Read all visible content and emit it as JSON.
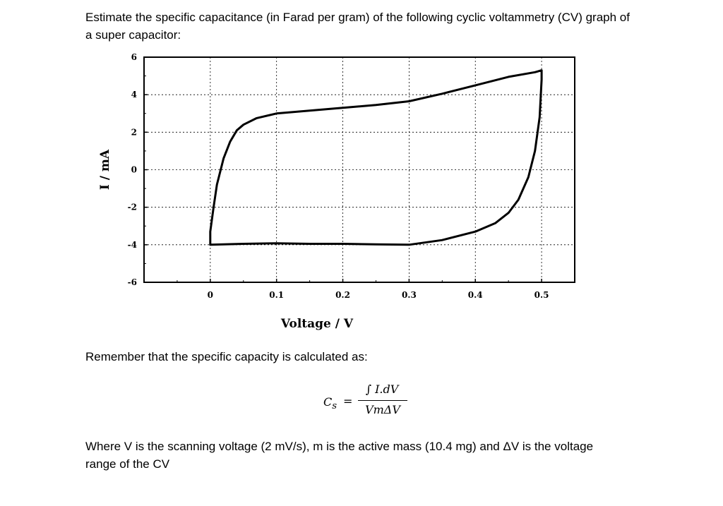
{
  "question": {
    "text": "Estimate the specific capacitance (in Farad per gram) of the following cyclic voltammetry (CV) graph of a super capacitor:"
  },
  "chart_data": {
    "type": "line",
    "title": "",
    "xlabel": "Voltage / V",
    "ylabel": "I / mA",
    "xlim": [
      -0.1,
      0.55
    ],
    "ylim": [
      -6,
      6
    ],
    "x_ticks": [
      "0",
      "0.1",
      "0.2",
      "0.3",
      "0.4",
      "0.5"
    ],
    "y_ticks": [
      "6",
      "4",
      "2",
      "0",
      "-2",
      "-4",
      "-6"
    ],
    "grid": true,
    "series": [
      {
        "x": [
          0.0,
          0.0,
          0.005,
          0.01,
          0.02,
          0.03,
          0.04,
          0.05,
          0.07,
          0.1,
          0.15,
          0.2,
          0.25,
          0.3,
          0.35,
          0.4,
          0.45,
          0.49,
          0.5,
          0.5,
          0.497,
          0.49,
          0.48,
          0.465,
          0.45,
          0.43,
          0.4,
          0.35,
          0.3,
          0.25,
          0.2,
          0.15,
          0.1,
          0.05,
          0.0
        ],
        "y": [
          -4.0,
          -3.3,
          -2.0,
          -0.8,
          0.6,
          1.5,
          2.1,
          2.4,
          2.75,
          3.0,
          3.15,
          3.3,
          3.45,
          3.65,
          4.05,
          4.5,
          4.95,
          5.2,
          5.3,
          4.8,
          2.8,
          1.0,
          -0.4,
          -1.6,
          -2.3,
          -2.85,
          -3.3,
          -3.75,
          -4.0,
          -3.98,
          -3.95,
          -3.95,
          -3.92,
          -3.95,
          -4.0
        ]
      }
    ]
  },
  "remember": {
    "text": "Remember that the specific capacity is calculated as:"
  },
  "formula": {
    "lhs": "C",
    "lhs_sub": "s",
    "equals": "=",
    "numerator": "∫ I.dV",
    "denominator": "VmΔV"
  },
  "where": {
    "text": "Where V is the scanning voltage (2 mV/s), m is the active mass (10.4 mg) and ΔV is the voltage range of the CV"
  }
}
